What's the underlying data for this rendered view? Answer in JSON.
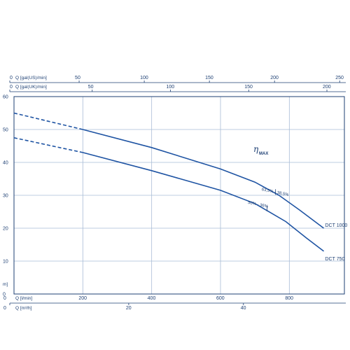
{
  "chart_data": {
    "type": "line",
    "title": "",
    "efficiency_label": {
      "symbol": "η",
      "subscript": "MAX"
    },
    "axes": {
      "top_us": {
        "label": "Q [gal(US)/min]",
        "range": [
          0,
          250
        ],
        "ticks": [
          "0",
          "50",
          "100",
          "150",
          "200",
          "250"
        ]
      },
      "top_uk": {
        "label": "Q [gal(UK)/min]",
        "range": [
          0,
          200
        ],
        "ticks": [
          "0",
          "50",
          "100",
          "150",
          "200"
        ]
      },
      "bottom_lmin": {
        "label": "Q [l/min]",
        "range": [
          0,
          1000
        ],
        "ticks": [
          "0",
          "200",
          "400",
          "600",
          "800"
        ]
      },
      "bottom_m3h": {
        "label": "Q [m³/h]",
        "range": [
          0,
          60
        ],
        "ticks": [
          "0",
          "20",
          "40"
        ]
      },
      "y": {
        "label": "m]",
        "range": [
          0,
          60
        ],
        "ticks": [
          "0",
          "10",
          "20",
          "30",
          "40",
          "50",
          "60"
        ]
      }
    },
    "grid": true,
    "series": [
      {
        "name": "DCT 1000",
        "dashed_points": [
          [
            0,
            55
          ],
          [
            200,
            50
          ]
        ],
        "points": [
          [
            200,
            50
          ],
          [
            400,
            44.5
          ],
          [
            600,
            38
          ],
          [
            700,
            34
          ],
          [
            770,
            30
          ],
          [
            830,
            25.5
          ],
          [
            900,
            20
          ]
        ],
        "efficiency_annotation": "63,5% - 38,5%"
      },
      {
        "name": "DCT 750",
        "dashed_points": [
          [
            0,
            47.5
          ],
          [
            200,
            43
          ]
        ],
        "points": [
          [
            200,
            43
          ],
          [
            400,
            37.5
          ],
          [
            600,
            31.5
          ],
          [
            700,
            27.5
          ],
          [
            790,
            22
          ],
          [
            850,
            17
          ],
          [
            900,
            13
          ]
        ],
        "efficiency_annotation": "50% - 36%"
      }
    ]
  }
}
